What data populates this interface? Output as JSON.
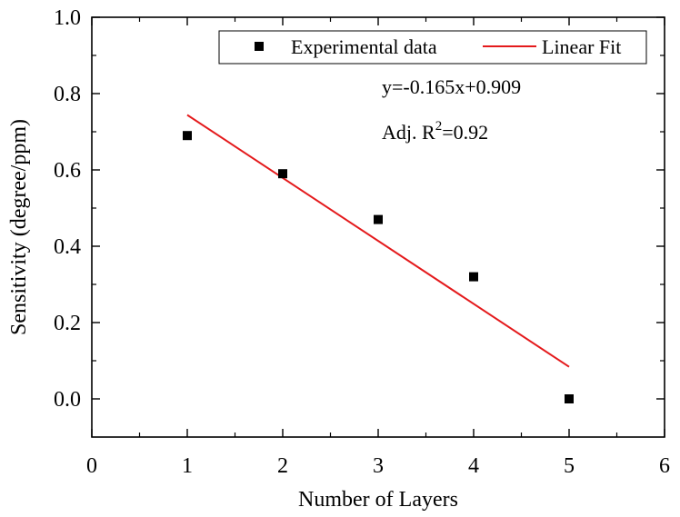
{
  "chart_data": {
    "type": "scatter",
    "title": "",
    "xlabel": "Number of Layers",
    "ylabel": "Sensitivity (degree/ppm)",
    "xlim": [
      0,
      6
    ],
    "ylim": [
      -0.1,
      1.0
    ],
    "x_major_ticks": [
      0,
      1,
      2,
      3,
      4,
      5,
      6
    ],
    "x_tick_labels": [
      "0",
      "1",
      "2",
      "3",
      "4",
      "5",
      "6"
    ],
    "y_major_ticks": [
      0.0,
      0.2,
      0.4,
      0.6,
      0.8,
      1.0
    ],
    "y_tick_labels": [
      "0.0",
      "0.2",
      "0.4",
      "0.6",
      "0.8",
      "1.0"
    ],
    "grid": false,
    "legend_position": "top-right",
    "series": [
      {
        "name": "Experimental data",
        "kind": "scatter",
        "marker": "square",
        "color": "#000000",
        "x": [
          1,
          2,
          3,
          4,
          5
        ],
        "y": [
          0.69,
          0.59,
          0.47,
          0.32,
          0.0
        ]
      },
      {
        "name": "Linear Fit",
        "kind": "line",
        "color": "#e41a1c",
        "slope": -0.165,
        "intercept": 0.909,
        "x": [
          1,
          5
        ],
        "y": [
          0.744,
          0.084
        ]
      }
    ],
    "annotations": {
      "equation": "y=-0.165x+0.909",
      "r2_prefix": "Adj. R",
      "r2_superscript": "2",
      "r2_value": "=0.92"
    }
  }
}
